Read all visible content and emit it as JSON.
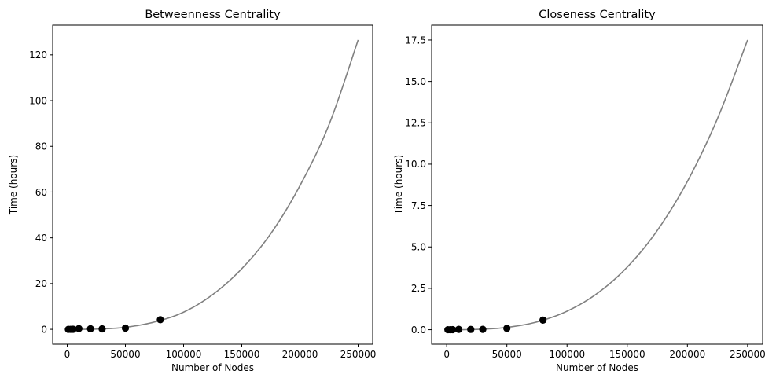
{
  "chart_data": [
    {
      "type": "scatter",
      "title": "Betweenness Centrality",
      "xlabel": "Number of Nodes",
      "ylabel": "Time (hours)",
      "xlim": [
        -12500,
        262500
      ],
      "ylim": [
        -6.5,
        133
      ],
      "xticks": [
        0,
        50000,
        100000,
        150000,
        200000,
        250000
      ],
      "xtick_labels": [
        "0",
        "50000",
        "100000",
        "150000",
        "200000",
        "250000"
      ],
      "yticks": [
        0,
        20,
        40,
        60,
        80,
        100,
        120
      ],
      "ytick_labels": [
        "0",
        "20",
        "40",
        "60",
        "80",
        "100",
        "120"
      ],
      "grid": false,
      "series": [
        {
          "kind": "points",
          "color": "#000000",
          "x": [
            1000,
            3000,
            5000,
            10000,
            20000,
            30000,
            50000,
            80000
          ],
          "y": [
            0.0003,
            0.0085,
            0.039,
            0.31,
            0.26,
            0.2,
            0.55,
            4.2
          ]
        },
        {
          "kind": "fit_curve",
          "color": "#808080",
          "x": [
            0,
            25000,
            50000,
            75000,
            100000,
            125000,
            150000,
            175000,
            200000,
            225000,
            250000
          ],
          "y": [
            0,
            0.1,
            0.9,
            3.2,
            7.5,
            15.2,
            26.5,
            41.9,
            62.8,
            89.5,
            126.5
          ]
        }
      ]
    },
    {
      "type": "scatter",
      "title": "Closeness Centrality",
      "xlabel": "Number of Nodes",
      "ylabel": "Time (hours)",
      "xlim": [
        -12500,
        262500
      ],
      "ylim": [
        -0.875,
        18.4
      ],
      "xticks": [
        0,
        50000,
        100000,
        150000,
        200000,
        250000
      ],
      "xtick_labels": [
        "0",
        "50000",
        "100000",
        "150000",
        "200000",
        "250000"
      ],
      "yticks": [
        0,
        2.5,
        5,
        7.5,
        10,
        12.5,
        15,
        17.5
      ],
      "ytick_labels": [
        "0.0",
        "2.5",
        "5.0",
        "7.5",
        "10.0",
        "12.5",
        "15.0",
        "17.5"
      ],
      "grid": false,
      "series": [
        {
          "kind": "points",
          "color": "#000000",
          "x": [
            1000,
            3000,
            5000,
            10000,
            20000,
            30000,
            50000,
            80000
          ],
          "y": [
            0.0001,
            0.001,
            0.004,
            0.02,
            0.018,
            0.02,
            0.08,
            0.58
          ]
        },
        {
          "kind": "fit_curve",
          "color": "#808080",
          "x": [
            0,
            25000,
            50000,
            75000,
            100000,
            125000,
            150000,
            175000,
            200000,
            225000,
            250000
          ],
          "y": [
            0,
            0.017,
            0.14,
            0.47,
            1.12,
            2.19,
            3.78,
            6.0,
            8.96,
            12.76,
            17.5
          ]
        }
      ]
    }
  ]
}
